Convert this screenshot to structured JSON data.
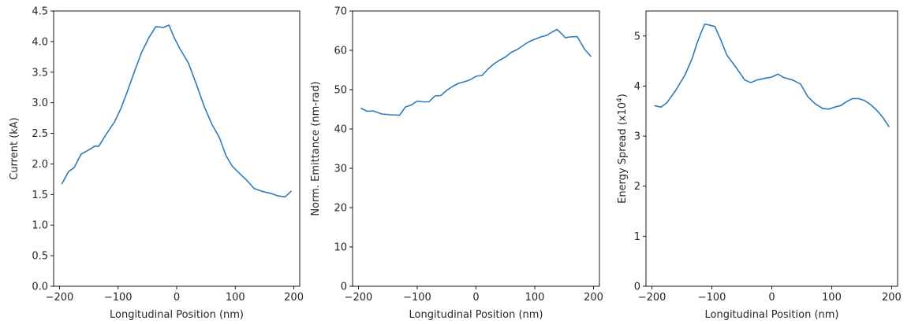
{
  "series_color": "#2f7ab8",
  "chart_data": [
    {
      "type": "line",
      "xlabel": "Longitudinal Position (nm)",
      "ylabel": "Current (kA)",
      "xlim": [
        -210,
        210
      ],
      "ylim": [
        0,
        4.5
      ],
      "xticks": [
        -200,
        -100,
        0,
        100,
        200
      ],
      "xtick_labels": [
        "−200",
        "−100",
        "0",
        "100",
        "200"
      ],
      "yticks": [
        0,
        0.5,
        1.0,
        1.5,
        2.0,
        2.5,
        3.0,
        3.5,
        4.0,
        4.5
      ],
      "ytick_labels": [
        "0.0",
        "0.5",
        "1.0",
        "1.5",
        "2.0",
        "2.5",
        "3.0",
        "3.5",
        "4.0",
        "4.5"
      ],
      "grid": false,
      "series": [
        {
          "x": [
            -196,
            -185,
            -175,
            -163,
            -150,
            -140,
            -133,
            -120,
            -106,
            -95,
            -84,
            -72,
            -60,
            -47,
            -36,
            -30,
            -23,
            -13,
            -5,
            5,
            20,
            33,
            47,
            60,
            73,
            84,
            95,
            108,
            120,
            132,
            146,
            160,
            172,
            185,
            196
          ],
          "y": [
            1.67,
            1.87,
            1.94,
            2.16,
            2.23,
            2.29,
            2.29,
            2.49,
            2.69,
            2.91,
            3.19,
            3.51,
            3.82,
            4.07,
            4.24,
            4.24,
            4.23,
            4.27,
            4.08,
            3.89,
            3.65,
            3.32,
            2.94,
            2.65,
            2.43,
            2.14,
            1.96,
            1.84,
            1.73,
            1.6,
            1.55,
            1.52,
            1.48,
            1.46,
            1.56
          ]
        }
      ]
    },
    {
      "type": "line",
      "xlabel": "Longitudinal Position (nm)",
      "ylabel": "Norm. Emittance (nm-rad)",
      "xlim": [
        -210,
        210
      ],
      "ylim": [
        0,
        70
      ],
      "xticks": [
        -200,
        -100,
        0,
        100,
        200
      ],
      "xtick_labels": [
        "−200",
        "−100",
        "0",
        "100",
        "200"
      ],
      "yticks": [
        0,
        10,
        20,
        30,
        40,
        50,
        60,
        70
      ],
      "ytick_labels": [
        "0",
        "10",
        "20",
        "30",
        "40",
        "50",
        "60",
        "70"
      ],
      "grid": false,
      "series": [
        {
          "x": [
            -196,
            -185,
            -175,
            -160,
            -145,
            -130,
            -120,
            -110,
            -100,
            -90,
            -80,
            -70,
            -60,
            -50,
            -40,
            -30,
            -20,
            -10,
            0,
            10,
            20,
            30,
            40,
            50,
            60,
            70,
            80,
            90,
            100,
            110,
            120,
            130,
            138,
            145,
            152,
            160,
            172,
            185,
            196
          ],
          "y": [
            45.3,
            44.5,
            44.6,
            43.8,
            43.6,
            43.5,
            45.6,
            46.1,
            47.1,
            46.9,
            46.9,
            48.4,
            48.5,
            49.8,
            50.8,
            51.6,
            52.0,
            52.5,
            53.4,
            53.6,
            55.2,
            56.5,
            57.5,
            58.3,
            59.5,
            60.2,
            61.2,
            62.2,
            62.8,
            63.4,
            63.8,
            64.7,
            65.3,
            64.3,
            63.2,
            63.4,
            63.5,
            60.2,
            58.4
          ]
        }
      ]
    },
    {
      "type": "line",
      "xlabel": "Longitudinal Position (nm)",
      "ylabel": "Energy Spread (x10",
      "ylabel_sup": "4",
      "ylabel_end": ")",
      "xlim": [
        -210,
        210
      ],
      "ylim": [
        0,
        5.5
      ],
      "xticks": [
        -200,
        -100,
        0,
        100,
        200
      ],
      "xtick_labels": [
        "−200",
        "−100",
        "0",
        "100",
        "200"
      ],
      "yticks": [
        0,
        1,
        2,
        3,
        4,
        5
      ],
      "ytick_labels": [
        "0",
        "1",
        "2",
        "3",
        "4",
        "5"
      ],
      "grid": false,
      "series": [
        {
          "x": [
            -196,
            -185,
            -175,
            -160,
            -145,
            -133,
            -125,
            -118,
            -112,
            -105,
            -95,
            -85,
            -75,
            -60,
            -45,
            -35,
            -25,
            -10,
            0,
            10,
            20,
            35,
            48,
            60,
            72,
            85,
            95,
            105,
            115,
            125,
            135,
            145,
            155,
            165,
            175,
            185,
            196
          ],
          "y": [
            3.61,
            3.58,
            3.67,
            3.92,
            4.22,
            4.55,
            4.85,
            5.07,
            5.24,
            5.22,
            5.19,
            4.92,
            4.62,
            4.38,
            4.12,
            4.07,
            4.12,
            4.16,
            4.18,
            4.24,
            4.17,
            4.12,
            4.04,
            3.79,
            3.65,
            3.55,
            3.54,
            3.58,
            3.61,
            3.69,
            3.75,
            3.75,
            3.71,
            3.63,
            3.52,
            3.38,
            3.18
          ]
        }
      ]
    }
  ]
}
